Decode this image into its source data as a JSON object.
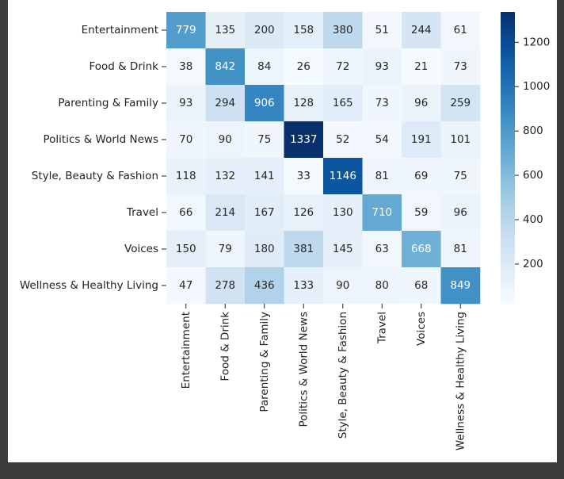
{
  "chart_data": {
    "type": "heatmap",
    "rows": [
      "Entertainment",
      "Food & Drink",
      "Parenting & Family",
      "Politics & World News",
      "Style, Beauty & Fashion",
      "Travel",
      "Voices",
      "Wellness & Healthy Living"
    ],
    "columns": [
      "Entertainment",
      "Food & Drink",
      "Parenting & Family",
      "Politics & World News",
      "Style, Beauty & Fashion",
      "Travel",
      "Voices",
      "Wellness & Healthy Living"
    ],
    "values": [
      [
        779,
        135,
        200,
        158,
        380,
        51,
        244,
        61
      ],
      [
        38,
        842,
        84,
        26,
        72,
        93,
        21,
        73
      ],
      [
        93,
        294,
        906,
        128,
        165,
        73,
        96,
        259
      ],
      [
        70,
        90,
        75,
        1337,
        52,
        54,
        191,
        101
      ],
      [
        118,
        132,
        141,
        33,
        1146,
        81,
        69,
        75
      ],
      [
        66,
        214,
        167,
        126,
        130,
        710,
        59,
        96
      ],
      [
        150,
        79,
        180,
        381,
        145,
        63,
        668,
        81
      ],
      [
        47,
        278,
        436,
        133,
        90,
        80,
        68,
        849
      ]
    ],
    "colormap": [
      "#f7fbff",
      "#deebf7",
      "#c6dbef",
      "#9ecae1",
      "#6baed6",
      "#4292c6",
      "#2171b5",
      "#08519c",
      "#08306b"
    ],
    "clim": [
      21,
      1337
    ],
    "cticks": [
      200,
      400,
      600,
      800,
      1000,
      1200
    ]
  }
}
